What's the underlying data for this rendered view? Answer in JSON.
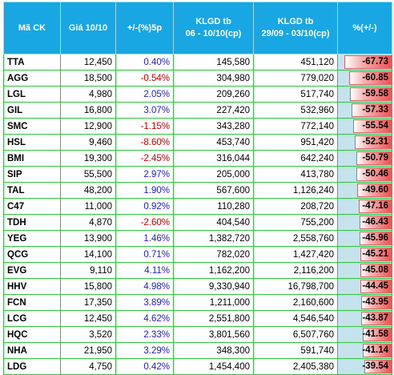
{
  "headers": {
    "code": "Mã CK",
    "price": "Giá 10/10",
    "change": "+/-(%)5p",
    "vol1_line1": "KLGD tb",
    "vol1_line2": "06 - 10/10(cp)",
    "vol2_line1": "KLGD tb",
    "vol2_line2": "29/09 - 03/10(cp)",
    "pct": "%(+/-)"
  },
  "colors": {
    "header_bg": "#19a7e4",
    "grid": "#2fc43a",
    "positive_text": "#2222cc",
    "negative_text": "#cc0000",
    "bar_bg": "#c5e3ec",
    "bar_fill": "#ee5252"
  },
  "rows": [
    {
      "code": "TTA",
      "price": "12,450",
      "change": "0.40%",
      "sign": "pos",
      "vol1": "145,580",
      "vol2": "451,120",
      "pct": "-67.73",
      "pct_value": -67.73
    },
    {
      "code": "AGG",
      "price": "18,500",
      "change": "-0.54%",
      "sign": "neg",
      "vol1": "304,980",
      "vol2": "779,020",
      "pct": "-60.85",
      "pct_value": -60.85
    },
    {
      "code": "LGL",
      "price": "4,980",
      "change": "2.05%",
      "sign": "pos",
      "vol1": "209,260",
      "vol2": "517,740",
      "pct": "-59.58",
      "pct_value": -59.58
    },
    {
      "code": "GIL",
      "price": "16,800",
      "change": "3.07%",
      "sign": "pos",
      "vol1": "227,420",
      "vol2": "532,960",
      "pct": "-57.33",
      "pct_value": -57.33
    },
    {
      "code": "SMC",
      "price": "12,900",
      "change": "-1.15%",
      "sign": "neg",
      "vol1": "343,280",
      "vol2": "772,140",
      "pct": "-55.54",
      "pct_value": -55.54
    },
    {
      "code": "HSL",
      "price": "9,460",
      "change": "-8.60%",
      "sign": "neg",
      "vol1": "453,740",
      "vol2": "951,420",
      "pct": "-52.31",
      "pct_value": -52.31
    },
    {
      "code": "BMI",
      "price": "19,300",
      "change": "-2.45%",
      "sign": "neg",
      "vol1": "316,044",
      "vol2": "642,240",
      "pct": "-50.79",
      "pct_value": -50.79
    },
    {
      "code": "SIP",
      "price": "55,500",
      "change": "2.97%",
      "sign": "pos",
      "vol1": "205,000",
      "vol2": "413,780",
      "pct": "-50.46",
      "pct_value": -50.46
    },
    {
      "code": "TAL",
      "price": "48,200",
      "change": "1.90%",
      "sign": "pos",
      "vol1": "567,600",
      "vol2": "1,126,240",
      "pct": "-49.60",
      "pct_value": -49.6
    },
    {
      "code": "C47",
      "price": "11,000",
      "change": "0.92%",
      "sign": "pos",
      "vol1": "110,280",
      "vol2": "208,720",
      "pct": "-47.16",
      "pct_value": -47.16
    },
    {
      "code": "TDH",
      "price": "4,870",
      "change": "-2.60%",
      "sign": "neg",
      "vol1": "404,540",
      "vol2": "755,200",
      "pct": "-46.43",
      "pct_value": -46.43
    },
    {
      "code": "YEG",
      "price": "13,900",
      "change": "1.46%",
      "sign": "pos",
      "vol1": "1,382,720",
      "vol2": "2,558,760",
      "pct": "-45.96",
      "pct_value": -45.96
    },
    {
      "code": "QCG",
      "price": "14,100",
      "change": "0.71%",
      "sign": "pos",
      "vol1": "782,020",
      "vol2": "1,427,420",
      "pct": "-45.21",
      "pct_value": -45.21
    },
    {
      "code": "EVG",
      "price": "9,110",
      "change": "4.11%",
      "sign": "pos",
      "vol1": "1,162,200",
      "vol2": "2,116,200",
      "pct": "-45.08",
      "pct_value": -45.08
    },
    {
      "code": "HHV",
      "price": "15,800",
      "change": "4.98%",
      "sign": "pos",
      "vol1": "9,330,940",
      "vol2": "16,798,700",
      "pct": "-44.45",
      "pct_value": -44.45
    },
    {
      "code": "FCN",
      "price": "17,350",
      "change": "3.89%",
      "sign": "pos",
      "vol1": "1,211,000",
      "vol2": "2,160,600",
      "pct": "-43.95",
      "pct_value": -43.95
    },
    {
      "code": "LCG",
      "price": "12,450",
      "change": "4.62%",
      "sign": "pos",
      "vol1": "2,551,800",
      "vol2": "4,546,540",
      "pct": "-43.87",
      "pct_value": -43.87
    },
    {
      "code": "HQC",
      "price": "3,520",
      "change": "2.33%",
      "sign": "pos",
      "vol1": "3,801,560",
      "vol2": "6,507,760",
      "pct": "-41.58",
      "pct_value": -41.58
    },
    {
      "code": "NHA",
      "price": "21,950",
      "change": "3.29%",
      "sign": "pos",
      "vol1": "348,300",
      "vol2": "591,740",
      "pct": "-41.14",
      "pct_value": -41.14
    },
    {
      "code": "LDG",
      "price": "4,750",
      "change": "0.42%",
      "sign": "pos",
      "vol1": "1,454,400",
      "vol2": "2,405,380",
      "pct": "-39.54",
      "pct_value": -39.54
    }
  ]
}
